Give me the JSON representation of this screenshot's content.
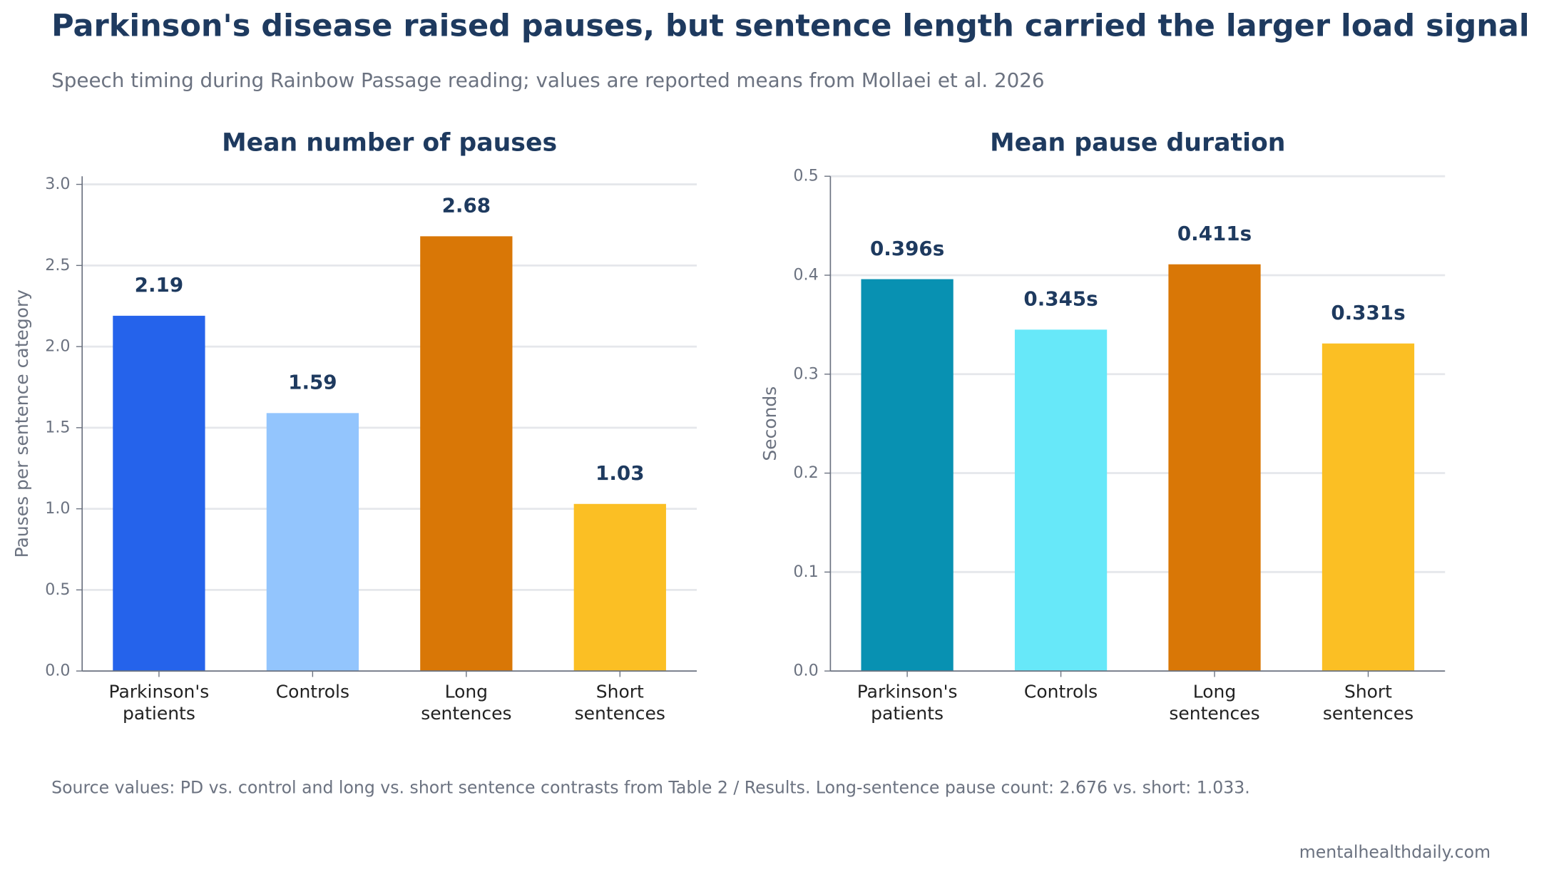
{
  "title": "Parkinson's disease raised pauses, but sentence length carried the larger load signal",
  "subtitle": "Speech timing during Rainbow Passage reading; values are reported means from Mollaei et al. 2026",
  "source_note": "Source values: PD vs. control and long vs. short sentence contrasts from Table 2 / Results. Long-sentence pause count: 2.676 vs. short: 1.033.",
  "watermark": "mentalhealthdaily.com",
  "chart_data": [
    {
      "type": "bar",
      "title": "Mean number of pauses",
      "y_label": "Pauses per sentence category",
      "categories": [
        "Parkinson's\npatients",
        "Controls",
        "Long\nsentences",
        "Short\nsentences"
      ],
      "values": [
        2.19,
        1.59,
        2.68,
        1.03
      ],
      "colors": [
        "#2563eb",
        "#93c5fd",
        "#d97706",
        "#fbbf24"
      ],
      "ylim": [
        0,
        3.05
      ],
      "yticks": [
        {
          "value": 0,
          "label": "0.0"
        },
        0.5,
        {
          "value": 1,
          "label": "1.0"
        },
        1.5,
        {
          "value": 2,
          "label": "2.0"
        },
        2.5,
        {
          "value": 3,
          "label": "3.0"
        }
      ],
      "grid": true
    },
    {
      "type": "bar",
      "title": "Mean pause duration",
      "y_label": "Seconds",
      "categories": [
        "Parkinson's\npatients",
        "Controls",
        "Long\nsentences",
        "Short\nsentences"
      ],
      "values": [
        0.396,
        0.345,
        0.411,
        0.331
      ],
      "value_labels": [
        "0.396s",
        "0.345s",
        "0.411s",
        "0.331s"
      ],
      "colors": [
        "#0891b2",
        "#67e8f9",
        "#d97706",
        "#fbbf24"
      ],
      "ylim": [
        0,
        0.5
      ],
      "yticks": [
        {
          "value": 0,
          "label": "0.0"
        },
        0.1,
        0.2,
        0.3,
        0.4,
        0.5
      ],
      "grid": true
    }
  ]
}
